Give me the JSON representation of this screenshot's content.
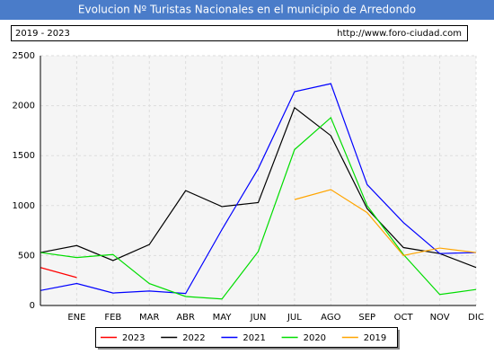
{
  "chart_data": {
    "type": "line",
    "title": "Evolucion Nº Turistas Nacionales en el municipio de Arredondo",
    "subtitle": "2019 - 2023",
    "source": "http://www.foro-ciudad.com",
    "categories": [
      null,
      "ENE",
      "FEB",
      "MAR",
      "ABR",
      "MAY",
      "JUN",
      "JUL",
      "AGO",
      "SEP",
      "OCT",
      "NOV",
      "DIC"
    ],
    "series": [
      {
        "name": "2023",
        "color": "#ff0000",
        "values": [
          380,
          280,
          null,
          null,
          null,
          null,
          null,
          null,
          null,
          null,
          null,
          null,
          null
        ]
      },
      {
        "name": "2022",
        "color": "#000000",
        "values": [
          530,
          600,
          450,
          610,
          1150,
          990,
          1030,
          1980,
          1700,
          970,
          580,
          520,
          380
        ]
      },
      {
        "name": "2021",
        "color": "#0000ff",
        "values": [
          150,
          220,
          125,
          145,
          120,
          760,
          1370,
          2140,
          2220,
          1210,
          830,
          520,
          530
        ]
      },
      {
        "name": "2020",
        "color": "#00dd00",
        "values": [
          530,
          480,
          510,
          220,
          90,
          65,
          540,
          1560,
          1880,
          1000,
          510,
          110,
          160
        ]
      },
      {
        "name": "2019",
        "color": "#ffa500",
        "values": [
          null,
          null,
          null,
          null,
          null,
          null,
          null,
          1060,
          1160,
          930,
          500,
          575,
          530
        ]
      }
    ],
    "ylim": [
      0,
      2500
    ],
    "yticks": [
      0,
      500,
      1000,
      1500,
      2000,
      2500
    ],
    "grid": true
  }
}
